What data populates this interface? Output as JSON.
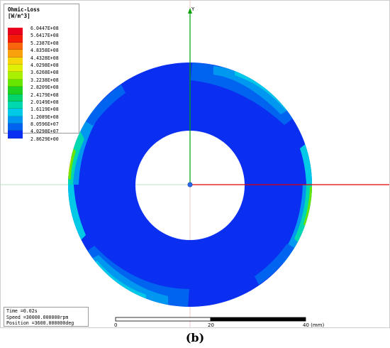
{
  "legend": {
    "title_line1": "Ohmic-Loss",
    "title_line2": "[W/m^3]",
    "entries": [
      {
        "value": "6.0447E+08",
        "color": "#e8001c"
      },
      {
        "value": "5.6417E+08",
        "color": "#f21c08"
      },
      {
        "value": "5.2387E+08",
        "color": "#f9650a"
      },
      {
        "value": "4.8358E+08",
        "color": "#f8a10c"
      },
      {
        "value": "4.4328E+08",
        "color": "#f4d60a"
      },
      {
        "value": "4.0298E+08",
        "color": "#dff006"
      },
      {
        "value": "3.6268E+08",
        "color": "#a8f000"
      },
      {
        "value": "3.2238E+08",
        "color": "#66e600"
      },
      {
        "value": "2.8209E+08",
        "color": "#1fd11f"
      },
      {
        "value": "2.4179E+08",
        "color": "#00d36c"
      },
      {
        "value": "2.0149E+08",
        "color": "#00d8b0"
      },
      {
        "value": "1.6119E+08",
        "color": "#00c9e8"
      },
      {
        "value": "1.2089E+08",
        "color": "#0097f0"
      },
      {
        "value": "8.0596E+07",
        "color": "#0064f0"
      },
      {
        "value": "4.0298E+07",
        "color": "#0a2ff0"
      },
      {
        "value": "2.8629E+00",
        "color": null
      }
    ]
  },
  "info": {
    "time": "Time      =0.02s",
    "speed": "Speed     =30000.000000rpm",
    "position": "Position =3600.000000deg"
  },
  "scale_bar": {
    "tick_0": "0",
    "tick_20": "20",
    "tick_40": "40 (mm)"
  },
  "axes": {
    "y_label": "Y"
  },
  "caption": "(b)",
  "colors": {
    "rotor_base": "#0a2ff0",
    "x_axis": "#e00000",
    "y_axis": "#00a000",
    "grid": "#c8e8c8"
  }
}
